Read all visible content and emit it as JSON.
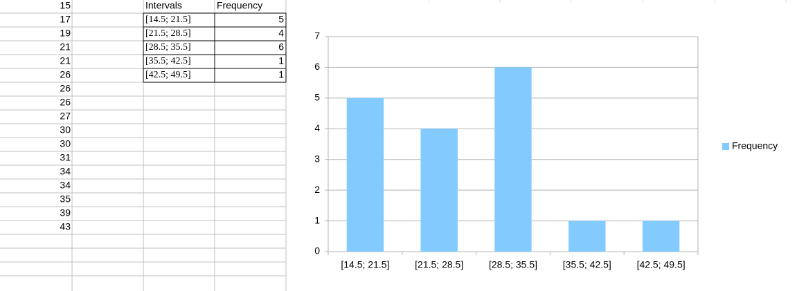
{
  "sheet": {
    "column_a": [
      15,
      17,
      19,
      21,
      21,
      26,
      26,
      26,
      27,
      30,
      30,
      31,
      34,
      34,
      35,
      39,
      43
    ],
    "table": {
      "header": [
        "Intervals",
        "Frequency"
      ],
      "rows": [
        [
          "[14.5; 21.5]",
          5
        ],
        [
          "[21.5; 28.5]",
          4
        ],
        [
          "[28.5; 35.5]",
          6
        ],
        [
          "[35.5; 42.5]",
          1
        ],
        [
          "[42.5; 49.5]",
          1
        ]
      ]
    }
  },
  "chart_data": {
    "type": "bar",
    "categories": [
      "[14.5; 21.5]",
      "[21.5; 28.5]",
      "[28.5; 35.5]",
      "[35.5; 42.5]",
      "[42.5; 49.5]"
    ],
    "series": [
      {
        "name": "Frequency",
        "color": "#83caff",
        "values": [
          5,
          4,
          6,
          1,
          1
        ]
      }
    ],
    "ylim": [
      0,
      7
    ],
    "yticks": [
      0,
      1,
      2,
      3,
      4,
      5,
      6,
      7
    ],
    "grid": true,
    "legend": "right"
  }
}
